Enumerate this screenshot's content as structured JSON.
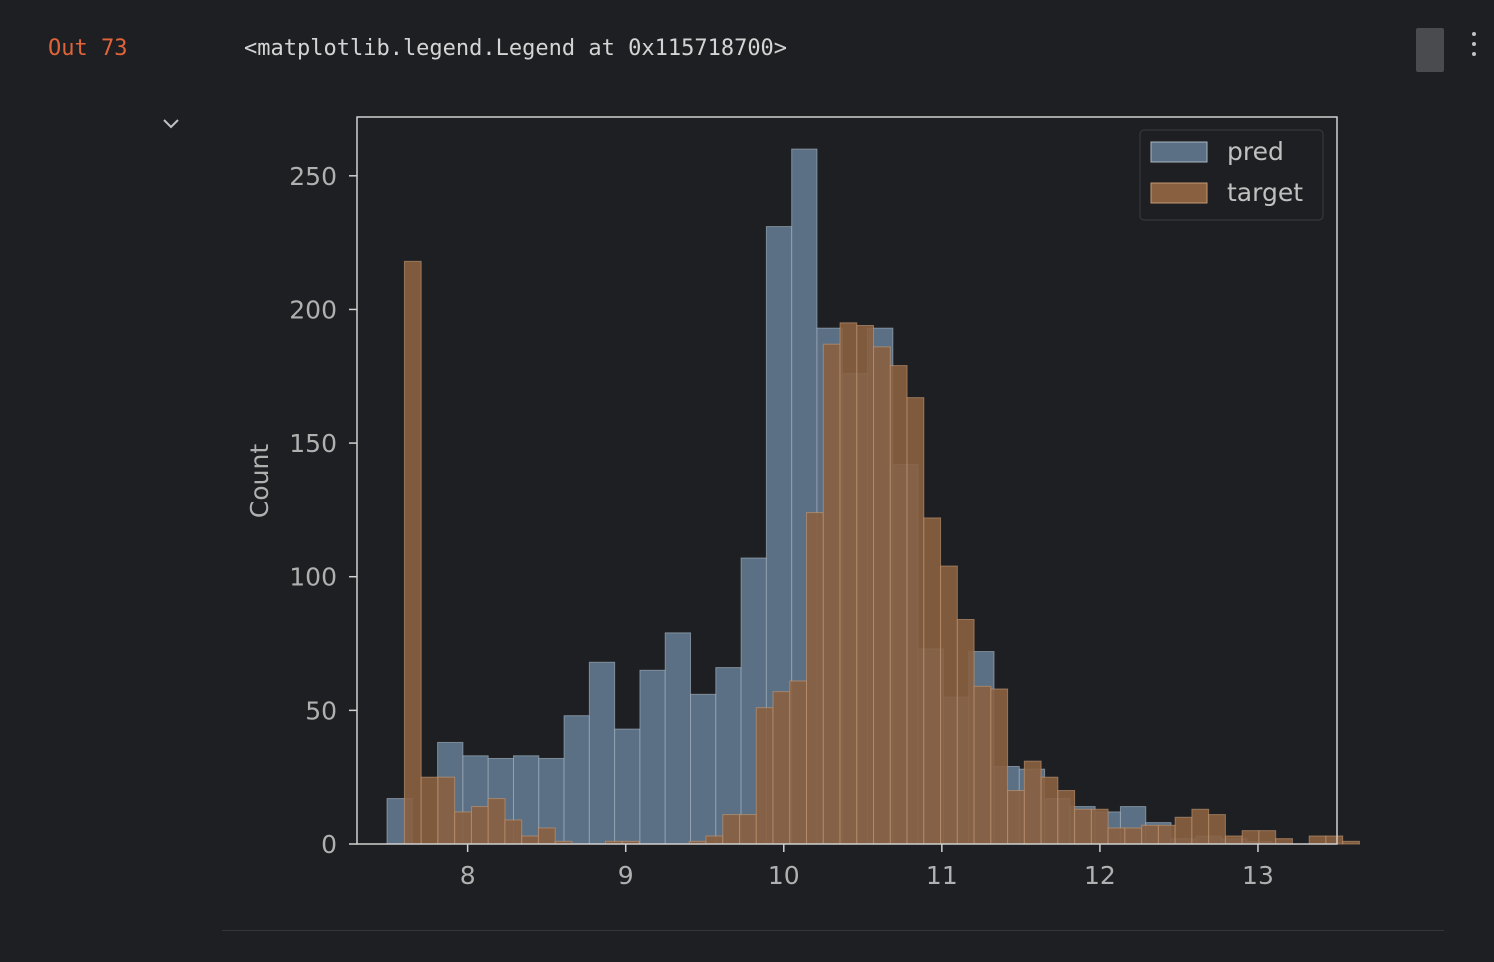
{
  "cell": {
    "out_label": "Out 73",
    "output_text": "<matplotlib.legend.Legend at 0x115718700>"
  },
  "icons": {
    "collapse": "chevron-down-icon",
    "more": "kebab-menu-icon"
  },
  "colors": {
    "background": "#1e1f22",
    "out_label": "#e0643a",
    "pred": "#5b7085",
    "target": "#8a6140"
  },
  "chart_data": {
    "type": "bar",
    "title": "",
    "xlabel": "",
    "ylabel": "Count",
    "xlim": [
      7.3,
      13.5
    ],
    "ylim": [
      0,
      272
    ],
    "xticks": [
      8,
      9,
      10,
      11,
      12,
      13
    ],
    "yticks": [
      0,
      50,
      100,
      150,
      200,
      250
    ],
    "legend_position": "top-right",
    "series": [
      {
        "name": "pred",
        "color": "#5b7085",
        "bin_start": 7.49,
        "bin_width": 0.16,
        "values": [
          17,
          0,
          38,
          33,
          32,
          33,
          32,
          48,
          68,
          43,
          65,
          79,
          56,
          66,
          107,
          231,
          260,
          193,
          176,
          193,
          142,
          73,
          55,
          72,
          29,
          28,
          17,
          14,
          12,
          14,
          8,
          2,
          3,
          2,
          1
        ]
      },
      {
        "name": "target",
        "color": "#8a6140",
        "bin_start": 7.6,
        "bin_width": 0.106,
        "values": [
          218,
          25,
          25,
          12,
          14,
          17,
          9,
          3,
          6,
          1,
          0,
          0,
          1,
          1,
          0,
          0,
          0,
          1,
          3,
          11,
          11,
          51,
          57,
          61,
          124,
          187,
          195,
          194,
          186,
          179,
          167,
          122,
          104,
          84,
          59,
          58,
          20,
          31,
          25,
          20,
          13,
          13,
          6,
          6,
          7,
          7,
          10,
          13,
          11,
          3,
          5,
          5,
          2,
          0,
          3,
          3,
          1,
          0
        ]
      }
    ]
  }
}
